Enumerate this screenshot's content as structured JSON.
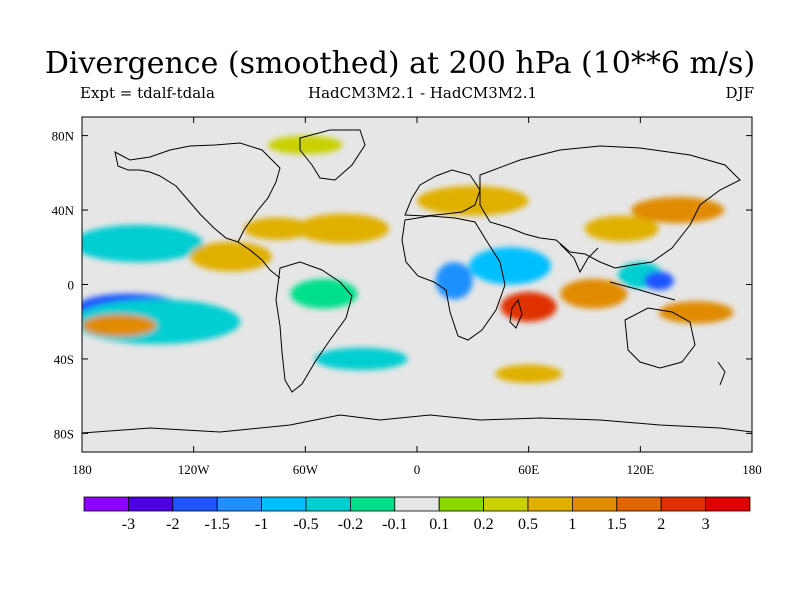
{
  "title": "Divergence (smoothed) at 200 hPa (10**6 m/s)",
  "experiment": "Expt = tdalf-tdala",
  "models": "HadCM3M2.1 - HadCM3M2.1",
  "season": "DJF",
  "map": {
    "lon_range": [
      -180,
      180
    ],
    "lat_range": [
      -90,
      90
    ],
    "x_ticks": [
      {
        "value": -180,
        "label": "180"
      },
      {
        "value": -120,
        "label": "120W"
      },
      {
        "value": -60,
        "label": "60W"
      },
      {
        "value": 0,
        "label": "0"
      },
      {
        "value": 60,
        "label": "60E"
      },
      {
        "value": 120,
        "label": "120E"
      },
      {
        "value": 180,
        "label": "180"
      }
    ],
    "y_ticks": [
      {
        "value": 80,
        "label": "80N"
      },
      {
        "value": 40,
        "label": "40N"
      },
      {
        "value": 0,
        "label": "0"
      },
      {
        "value": -40,
        "label": "40S"
      },
      {
        "value": -80,
        "label": "80S"
      }
    ],
    "background_color": "#e6e6e6",
    "anomalies": [
      {
        "lon": -155,
        "lat": -12,
        "rlon": 28,
        "rlat": 7,
        "level": -2
      },
      {
        "lon": -140,
        "lat": -20,
        "rlon": 45,
        "rlat": 12,
        "level": -0.5
      },
      {
        "lon": -160,
        "lat": -22,
        "rlon": 20,
        "rlat": 6,
        "level": 1
      },
      {
        "lon": -150,
        "lat": 22,
        "rlon": 35,
        "rlat": 10,
        "level": -0.5
      },
      {
        "lon": -100,
        "lat": 15,
        "rlon": 22,
        "rlat": 8,
        "level": 0.5
      },
      {
        "lon": -75,
        "lat": 30,
        "rlon": 18,
        "rlat": 6,
        "level": 0.5
      },
      {
        "lon": -50,
        "lat": -5,
        "rlon": 18,
        "rlat": 8,
        "level": -0.2
      },
      {
        "lon": -40,
        "lat": 30,
        "rlon": 25,
        "rlat": 8,
        "level": 0.5
      },
      {
        "lon": 20,
        "lat": 2,
        "rlon": 10,
        "rlat": 10,
        "level": -1.5
      },
      {
        "lon": 50,
        "lat": 10,
        "rlon": 22,
        "rlat": 10,
        "level": -1
      },
      {
        "lon": 60,
        "lat": -12,
        "rlon": 15,
        "rlat": 8,
        "level": 2
      },
      {
        "lon": 95,
        "lat": -5,
        "rlon": 18,
        "rlat": 8,
        "level": 1
      },
      {
        "lon": 120,
        "lat": 5,
        "rlon": 12,
        "rlat": 7,
        "level": -0.5
      },
      {
        "lon": 130,
        "lat": 2,
        "rlon": 8,
        "rlat": 5,
        "level": -2
      },
      {
        "lon": 150,
        "lat": -15,
        "rlon": 20,
        "rlat": 6,
        "level": 1
      },
      {
        "lon": 30,
        "lat": 45,
        "rlon": 30,
        "rlat": 8,
        "level": 0.5
      },
      {
        "lon": 110,
        "lat": 30,
        "rlon": 20,
        "rlat": 7,
        "level": 0.5
      },
      {
        "lon": 140,
        "lat": 40,
        "rlon": 25,
        "rlat": 7,
        "level": 1
      },
      {
        "lon": -60,
        "lat": 75,
        "rlon": 20,
        "rlat": 5,
        "level": 0.2
      },
      {
        "lon": -30,
        "lat": -40,
        "rlon": 25,
        "rlat": 6,
        "level": -0.5
      },
      {
        "lon": 60,
        "lat": -48,
        "rlon": 18,
        "rlat": 5,
        "level": 0.5
      }
    ]
  },
  "colorbar": {
    "colors": [
      "#8b00ff",
      "#4b00e0",
      "#1e55ff",
      "#1e90ff",
      "#00bfff",
      "#00ced1",
      "#00e08b",
      "#e6e6e6",
      "#8bd800",
      "#c9d100",
      "#e0b000",
      "#e08b00",
      "#e06400",
      "#e03000",
      "#e00000"
    ],
    "labels": [
      "-3",
      "-2",
      "-1.5",
      "-1",
      "-0.5",
      "-0.2",
      "-0.1",
      "0.1",
      "0.2",
      "0.5",
      "1",
      "1.5",
      "2",
      "3"
    ]
  }
}
